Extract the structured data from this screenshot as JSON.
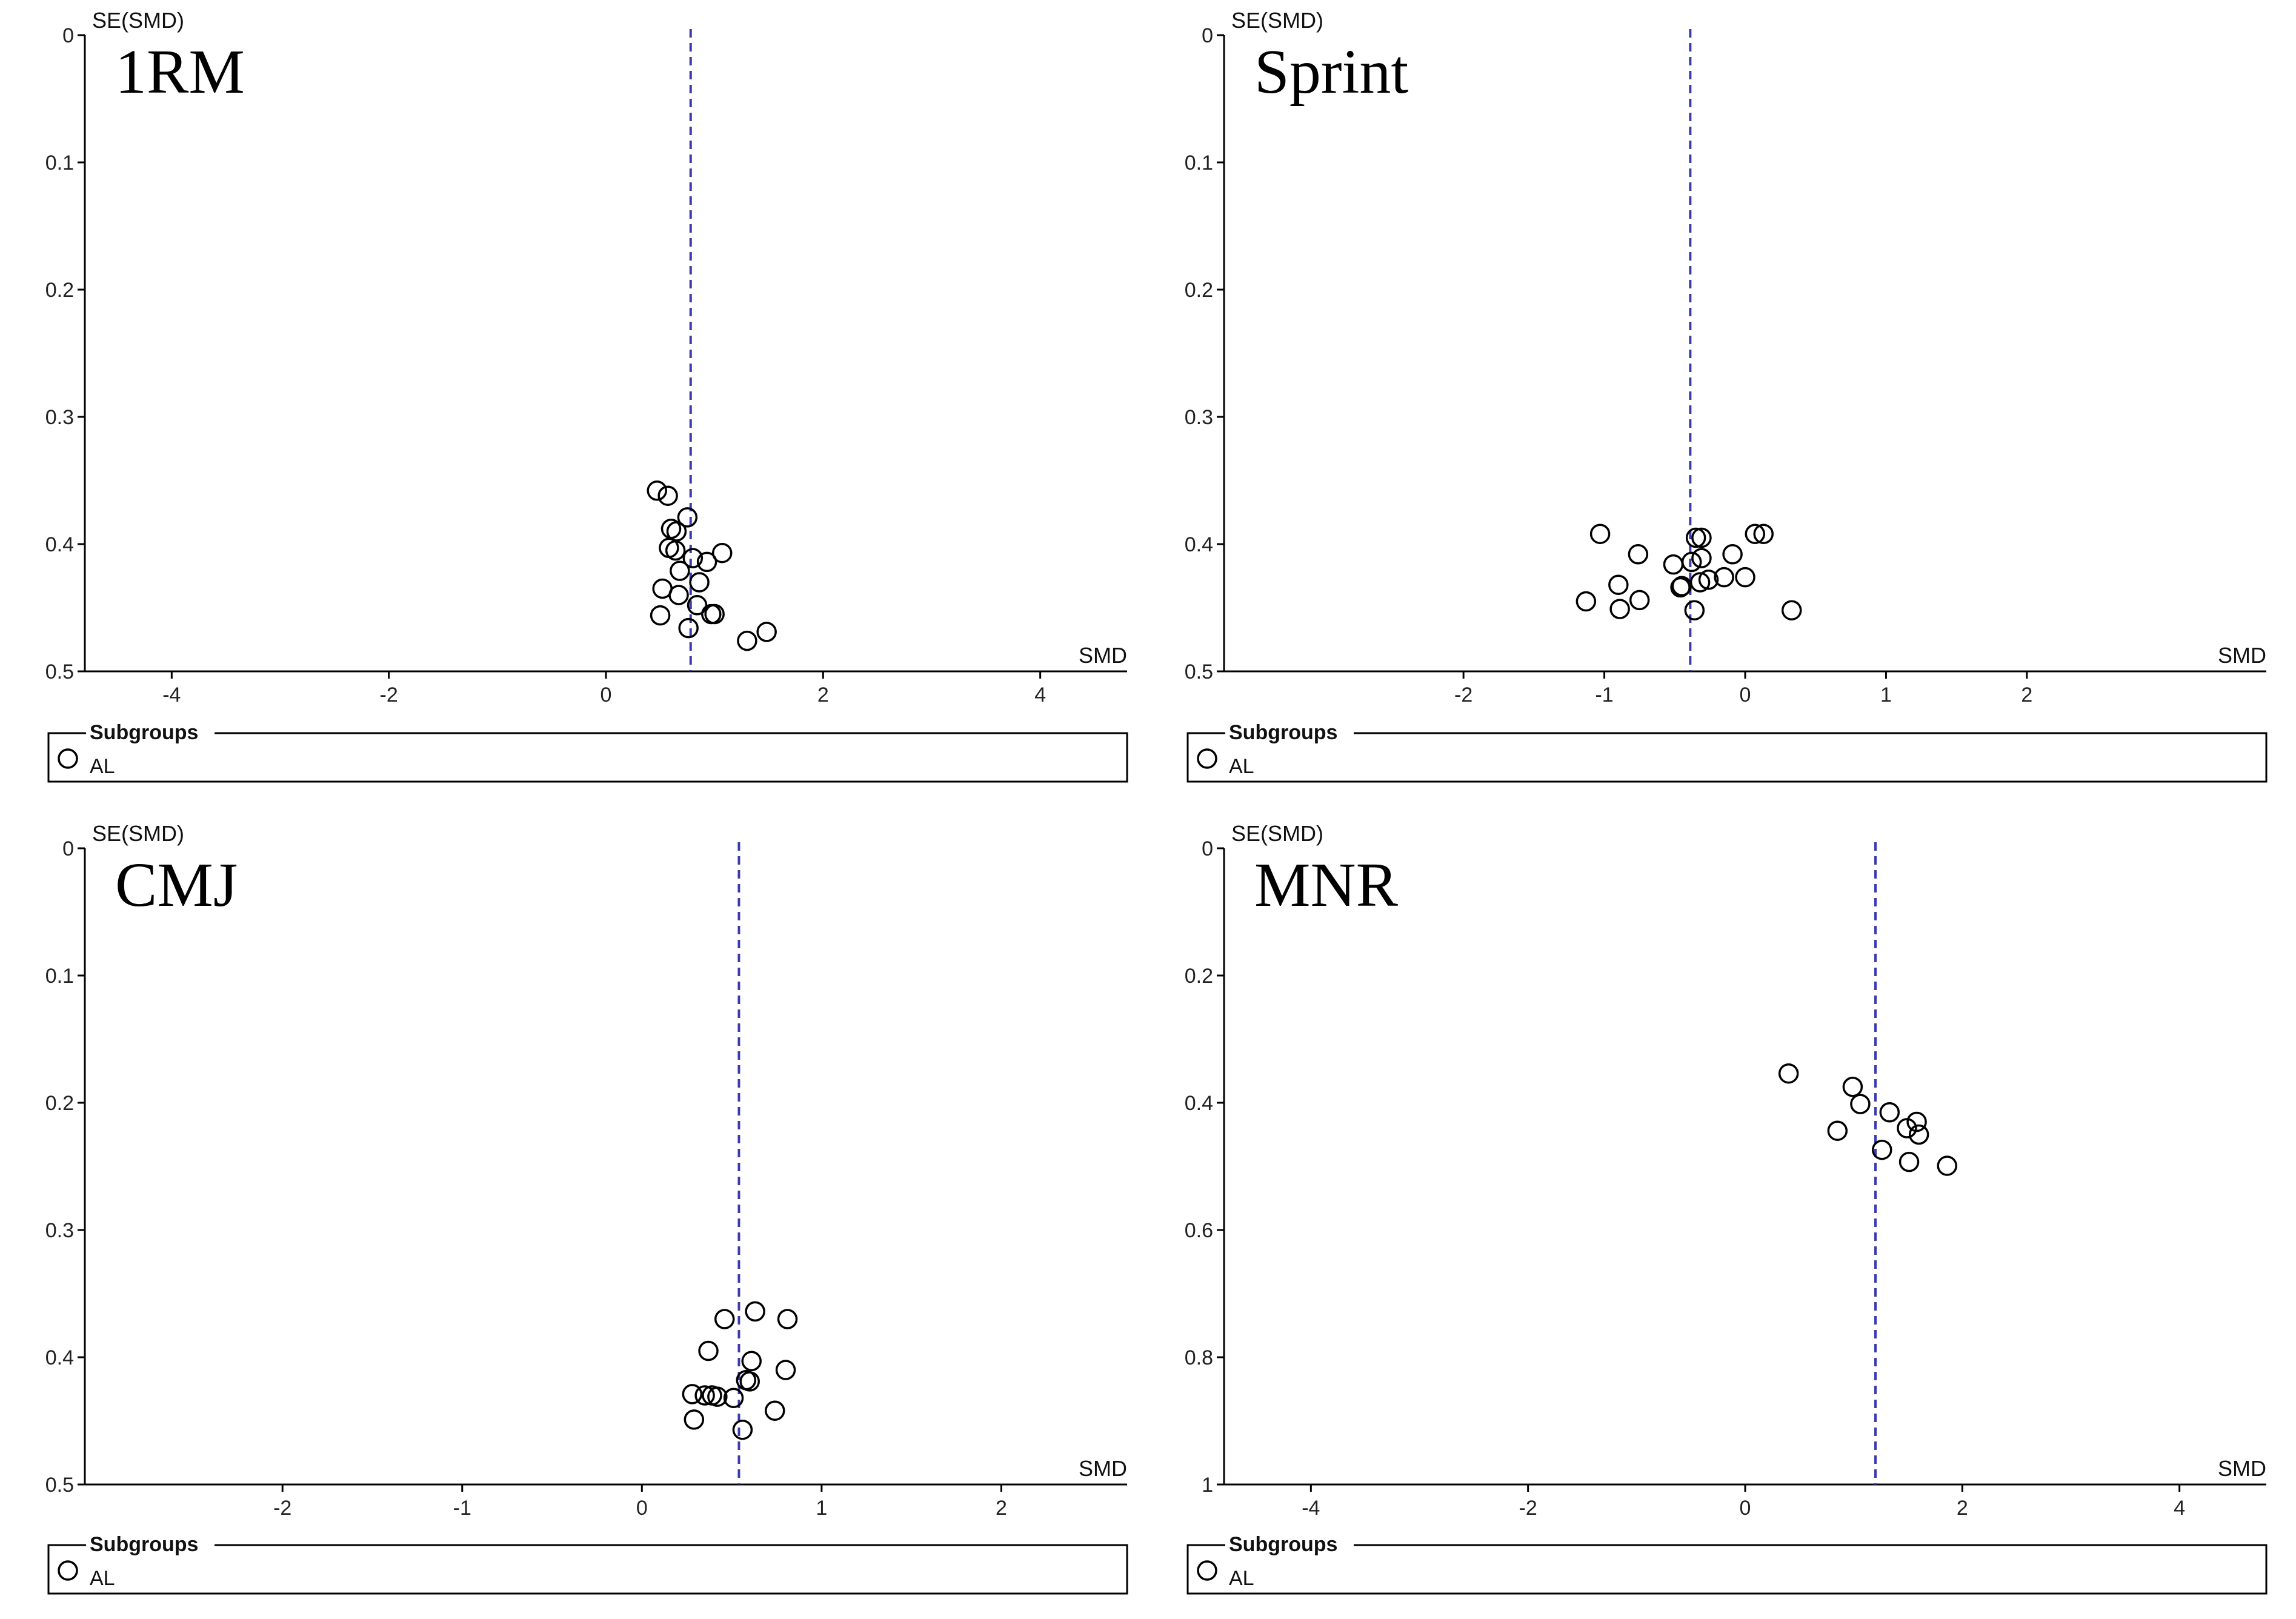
{
  "chart_data": [
    {
      "type": "scatter",
      "title": "1RM",
      "xlabel": "SMD",
      "ylabel": "SE(SMD)",
      "xlim": [
        -4.8,
        4.8
      ],
      "ylim": [
        0,
        0.5
      ],
      "y_reversed": true,
      "x_ticks": [
        -4,
        -2,
        0,
        2,
        4
      ],
      "y_ticks": [
        0,
        0.1,
        0.2,
        0.3,
        0.4,
        0.5
      ],
      "y_tick_labels": [
        "0",
        "0.1",
        "0.2",
        "0.3",
        "0.4",
        "0.5"
      ],
      "reference_line_x": 0.78,
      "grid": false,
      "legend": {
        "title": "Subgroups",
        "placement": "bottom",
        "entries": [
          "AL"
        ]
      },
      "series": [
        {
          "name": "AL",
          "points": [
            {
              "x": 0.47,
              "y": 0.358
            },
            {
              "x": 0.57,
              "y": 0.362
            },
            {
              "x": 0.75,
              "y": 0.379
            },
            {
              "x": 0.6,
              "y": 0.388
            },
            {
              "x": 0.65,
              "y": 0.39
            },
            {
              "x": 0.58,
              "y": 0.403
            },
            {
              "x": 0.64,
              "y": 0.405
            },
            {
              "x": 0.8,
              "y": 0.411
            },
            {
              "x": 0.93,
              "y": 0.414
            },
            {
              "x": 1.07,
              "y": 0.407
            },
            {
              "x": 0.68,
              "y": 0.421
            },
            {
              "x": 0.86,
              "y": 0.43
            },
            {
              "x": 0.52,
              "y": 0.435
            },
            {
              "x": 0.67,
              "y": 0.44
            },
            {
              "x": 0.84,
              "y": 0.448
            },
            {
              "x": 0.97,
              "y": 0.455
            },
            {
              "x": 1.0,
              "y": 0.455
            },
            {
              "x": 0.5,
              "y": 0.456
            },
            {
              "x": 0.76,
              "y": 0.466
            },
            {
              "x": 1.48,
              "y": 0.469
            },
            {
              "x": 1.3,
              "y": 0.476
            }
          ]
        }
      ]
    },
    {
      "type": "scatter",
      "title": "Sprint",
      "xlabel": "SMD",
      "ylabel": "SE(SMD)",
      "xlim": [
        -3.7,
        3.7
      ],
      "ylim": [
        0,
        0.5
      ],
      "y_reversed": true,
      "x_ticks": [
        -2,
        -1,
        0,
        1,
        2
      ],
      "y_ticks": [
        0,
        0.1,
        0.2,
        0.3,
        0.4,
        0.5
      ],
      "y_tick_labels": [
        "0",
        "0.1",
        "0.2",
        "0.3",
        "0.4",
        "0.5"
      ],
      "reference_line_x": -0.39,
      "grid": false,
      "legend": {
        "title": "Subgroups",
        "placement": "bottom",
        "entries": [
          "AL"
        ]
      },
      "series": [
        {
          "name": "AL",
          "points": [
            {
              "x": -1.03,
              "y": 0.392
            },
            {
              "x": -0.35,
              "y": 0.395
            },
            {
              "x": -0.31,
              "y": 0.395
            },
            {
              "x": 0.07,
              "y": 0.392
            },
            {
              "x": 0.13,
              "y": 0.392
            },
            {
              "x": -0.76,
              "y": 0.408
            },
            {
              "x": -0.09,
              "y": 0.408
            },
            {
              "x": -0.31,
              "y": 0.411
            },
            {
              "x": -0.38,
              "y": 0.414
            },
            {
              "x": -0.51,
              "y": 0.416
            },
            {
              "x": 0.0,
              "y": 0.426
            },
            {
              "x": -0.15,
              "y": 0.426
            },
            {
              "x": -0.26,
              "y": 0.428
            },
            {
              "x": -0.32,
              "y": 0.43
            },
            {
              "x": -0.9,
              "y": 0.432
            },
            {
              "x": -0.45,
              "y": 0.433
            },
            {
              "x": -0.46,
              "y": 0.434
            },
            {
              "x": -1.13,
              "y": 0.445
            },
            {
              "x": -0.75,
              "y": 0.444
            },
            {
              "x": -0.89,
              "y": 0.451
            },
            {
              "x": -0.36,
              "y": 0.452
            },
            {
              "x": 0.33,
              "y": 0.452
            }
          ]
        }
      ]
    },
    {
      "type": "scatter",
      "title": "CMJ",
      "xlabel": "SMD",
      "ylabel": "SE(SMD)",
      "xlim": [
        -3.1,
        2.7
      ],
      "ylim": [
        0,
        0.5
      ],
      "y_reversed": true,
      "x_ticks": [
        -2,
        -1,
        0,
        1,
        2
      ],
      "y_ticks": [
        0,
        0.1,
        0.2,
        0.3,
        0.4,
        0.5
      ],
      "y_tick_labels": [
        "0",
        "0.1",
        "0.2",
        "0.3",
        "0.4",
        "0.5"
      ],
      "reference_line_x": 0.54,
      "grid": false,
      "legend": {
        "title": "Subgroups",
        "placement": "bottom",
        "entries": [
          "AL"
        ]
      },
      "series": [
        {
          "name": "AL",
          "points": [
            {
              "x": 0.63,
              "y": 0.364
            },
            {
              "x": 0.81,
              "y": 0.37
            },
            {
              "x": 0.46,
              "y": 0.37
            },
            {
              "x": 0.37,
              "y": 0.395
            },
            {
              "x": 0.61,
              "y": 0.403
            },
            {
              "x": 0.8,
              "y": 0.41
            },
            {
              "x": 0.58,
              "y": 0.418
            },
            {
              "x": 0.6,
              "y": 0.419
            },
            {
              "x": 0.28,
              "y": 0.429
            },
            {
              "x": 0.35,
              "y": 0.43
            },
            {
              "x": 0.39,
              "y": 0.43
            },
            {
              "x": 0.42,
              "y": 0.431
            },
            {
              "x": 0.51,
              "y": 0.432
            },
            {
              "x": 0.74,
              "y": 0.442
            },
            {
              "x": 0.29,
              "y": 0.449
            },
            {
              "x": 0.56,
              "y": 0.457
            }
          ]
        }
      ]
    },
    {
      "type": "scatter",
      "title": "MNR",
      "xlabel": "SMD",
      "ylabel": "SE(SMD)",
      "xlim": [
        -4.8,
        4.8
      ],
      "ylim": [
        0,
        1
      ],
      "y_reversed": true,
      "x_ticks": [
        -4,
        -2,
        0,
        2,
        4
      ],
      "y_ticks": [
        0,
        0.2,
        0.4,
        0.6,
        0.8,
        1
      ],
      "y_tick_labels": [
        "0",
        "0.2",
        "0.4",
        "0.6",
        "0.8",
        "1"
      ],
      "reference_line_x": 1.2,
      "grid": false,
      "legend": {
        "title": "Subgroups",
        "placement": "bottom",
        "entries": [
          "AL"
        ]
      },
      "series": [
        {
          "name": "AL",
          "points": [
            {
              "x": 0.4,
              "y": 0.354
            },
            {
              "x": 0.99,
              "y": 0.375
            },
            {
              "x": 1.06,
              "y": 0.402
            },
            {
              "x": 1.33,
              "y": 0.415
            },
            {
              "x": 1.58,
              "y": 0.43
            },
            {
              "x": 1.49,
              "y": 0.44
            },
            {
              "x": 0.85,
              "y": 0.444
            },
            {
              "x": 1.6,
              "y": 0.45
            },
            {
              "x": 1.26,
              "y": 0.474
            },
            {
              "x": 1.51,
              "y": 0.493
            },
            {
              "x": 1.86,
              "y": 0.499
            }
          ]
        }
      ]
    }
  ]
}
